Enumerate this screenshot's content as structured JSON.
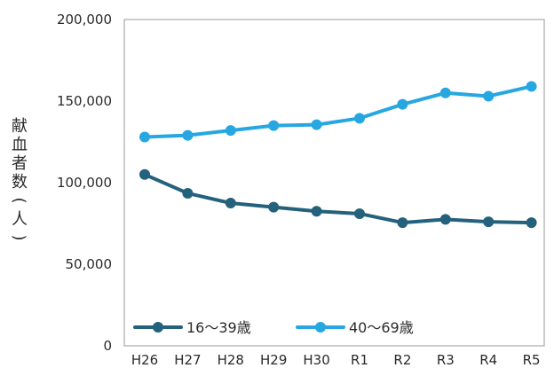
{
  "chart_data": {
    "type": "line",
    "ylabel": "献血者数(人)",
    "categories": [
      "H26",
      "H27",
      "H28",
      "H29",
      "H30",
      "R1",
      "R2",
      "R3",
      "R4",
      "R5"
    ],
    "y_ticks": [
      "200,000",
      "150,000",
      "100,000",
      "50,000",
      "0"
    ],
    "ylim": [
      0,
      200000
    ],
    "grid": false,
    "legend_position": "bottom-left",
    "series": [
      {
        "name": "16～39歳",
        "color": "#24617c",
        "values": [
          105000,
          93500,
          87500,
          85000,
          82500,
          81000,
          75500,
          77500,
          76000,
          75500
        ]
      },
      {
        "name": "40～69歳",
        "color": "#27a7e1",
        "values": [
          128000,
          129000,
          132000,
          135000,
          135500,
          139500,
          148000,
          155000,
          153000,
          159000
        ]
      }
    ]
  }
}
